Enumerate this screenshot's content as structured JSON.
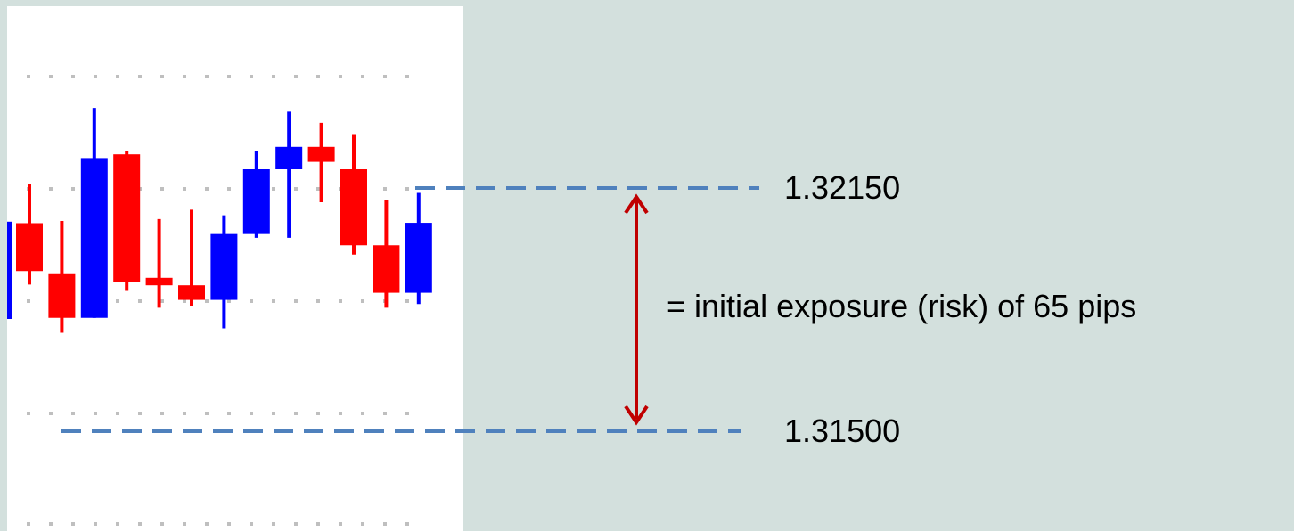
{
  "colors": {
    "background": "#d3e0dd",
    "chart_panel": "#ffffff",
    "bullish": "#0000ff",
    "bearish": "#ff0000",
    "level_line": "#4f81bd",
    "arrow": "#c00000",
    "grid_dots": "#bfbfbf"
  },
  "chart_data": {
    "type": "candlestick",
    "grid": "dotted",
    "candles": [
      {
        "direction": "bearish",
        "open": 1.32056,
        "close": 1.31928,
        "high": 1.3216,
        "low": 1.31892
      },
      {
        "direction": "bearish",
        "open": 1.31922,
        "close": 1.31803,
        "high": 1.32062,
        "low": 1.31763
      },
      {
        "direction": "bullish",
        "open": 1.31803,
        "close": 1.3223,
        "high": 1.32364,
        "low": 1.31803
      },
      {
        "direction": "bearish",
        "open": 1.3224,
        "close": 1.319,
        "high": 1.3225,
        "low": 1.31875
      },
      {
        "direction": "bearish",
        "open": 1.3191,
        "close": 1.3189,
        "high": 1.32067,
        "low": 1.3183
      },
      {
        "direction": "bearish",
        "open": 1.3189,
        "close": 1.31851,
        "high": 1.32092,
        "low": 1.31835
      },
      {
        "direction": "bullish",
        "open": 1.31851,
        "close": 1.32027,
        "high": 1.32077,
        "low": 1.31775
      },
      {
        "direction": "bullish",
        "open": 1.32027,
        "close": 1.322,
        "high": 1.3225,
        "low": 1.32017
      },
      {
        "direction": "bullish",
        "open": 1.322,
        "close": 1.3226,
        "high": 1.32354,
        "low": 1.32017
      },
      {
        "direction": "bearish",
        "open": 1.3226,
        "close": 1.3222,
        "high": 1.32324,
        "low": 1.32112
      },
      {
        "direction": "bearish",
        "open": 1.322,
        "close": 1.31997,
        "high": 1.32294,
        "low": 1.31972
      },
      {
        "direction": "bearish",
        "open": 1.31997,
        "close": 1.3187,
        "high": 1.32117,
        "low": 1.3183
      },
      {
        "direction": "bullish",
        "open": 1.3187,
        "close": 1.32057,
        "high": 1.32137,
        "low": 1.3184
      }
    ],
    "levels": [
      {
        "value": 1.3215,
        "label": "1.32150"
      },
      {
        "value": 1.315,
        "label": "1.31500"
      }
    ],
    "annotation": "= initial exposure (risk) of 65 pips"
  }
}
